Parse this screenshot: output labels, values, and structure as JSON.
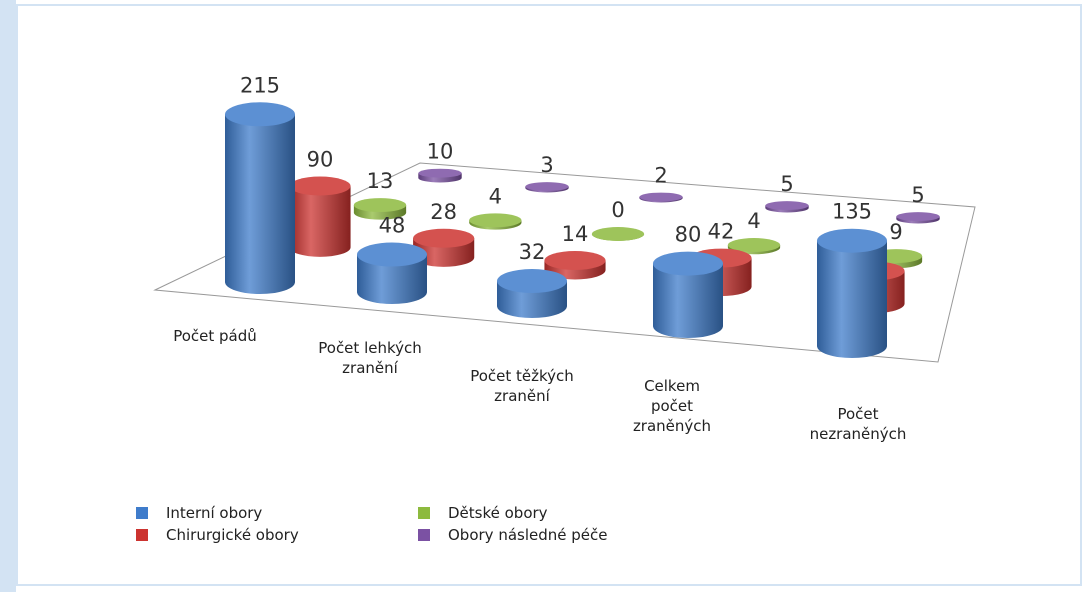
{
  "chart_data": {
    "type": "bar3d",
    "categories": [
      "Počet pádů",
      "Počet lehkých zranění",
      "Počet těžkých zranění",
      "Celkem počet zraněných",
      "Počet nezraněných"
    ],
    "series": [
      {
        "name": "Interní obory",
        "color": "#3f7ccb",
        "values": [
          215,
          48,
          32,
          80,
          135
        ]
      },
      {
        "name": "Chirurgické obory",
        "color": "#cc3330",
        "values": [
          90,
          28,
          14,
          42,
          48
        ]
      },
      {
        "name": "Dětské obory",
        "color": "#8dba3e",
        "values": [
          13,
          4,
          0,
          4,
          9
        ]
      },
      {
        "name": "Obory následné péče",
        "color": "#7b51a3",
        "values": [
          10,
          3,
          2,
          5,
          5
        ]
      }
    ]
  }
}
